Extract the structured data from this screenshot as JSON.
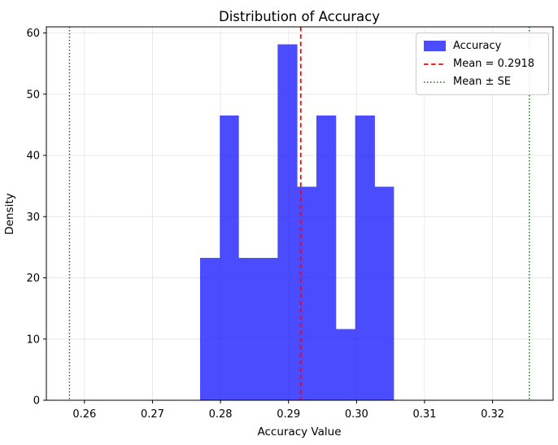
{
  "chart_data": {
    "type": "bar",
    "subtype": "histogram",
    "title": "Distribution of Accuracy",
    "xlabel": "Accuracy Value",
    "ylabel": "Density",
    "xlim": [
      0.2544,
      0.3289
    ],
    "ylim": [
      0,
      61.0
    ],
    "grid": true,
    "xticks": [
      {
        "v": 0.26,
        "label": "0.26"
      },
      {
        "v": 0.27,
        "label": "0.27"
      },
      {
        "v": 0.28,
        "label": "0.28"
      },
      {
        "v": 0.29,
        "label": "0.29"
      },
      {
        "v": 0.3,
        "label": "0.30"
      },
      {
        "v": 0.31,
        "label": "0.31"
      },
      {
        "v": 0.32,
        "label": "0.32"
      }
    ],
    "yticks": [
      {
        "v": 0,
        "label": "0"
      },
      {
        "v": 10,
        "label": "10"
      },
      {
        "v": 20,
        "label": "20"
      },
      {
        "v": 30,
        "label": "30"
      },
      {
        "v": 40,
        "label": "40"
      },
      {
        "v": 50,
        "label": "50"
      },
      {
        "v": 60,
        "label": "60"
      }
    ],
    "bins": {
      "edges": [
        0.277,
        0.2799,
        0.2827,
        0.2856,
        0.2884,
        0.2913,
        0.2941,
        0.297,
        0.2998,
        0.3027,
        0.3055
      ],
      "densities": [
        23.26,
        46.51,
        23.26,
        23.26,
        58.14,
        34.88,
        46.51,
        11.63,
        46.51,
        34.88
      ]
    },
    "mean": 0.2918,
    "mean_minus_se": 0.2578,
    "mean_plus_se": 0.3254,
    "colors": {
      "bar": "#0000ff",
      "bar_opacity": 0.7,
      "mean_line": "#ff0000",
      "se_line": "#008000",
      "grid": "#e7e7e7",
      "spine": "#000000"
    },
    "legend": {
      "position": "top-right",
      "entries": [
        {
          "label": "Accuracy",
          "type": "patch",
          "color": "#0000ff"
        },
        {
          "label": "Mean = 0.2918",
          "type": "dashed",
          "color": "#ff0000"
        },
        {
          "label": "Mean ± SE",
          "type": "dotted",
          "color": "#008000"
        }
      ]
    }
  }
}
